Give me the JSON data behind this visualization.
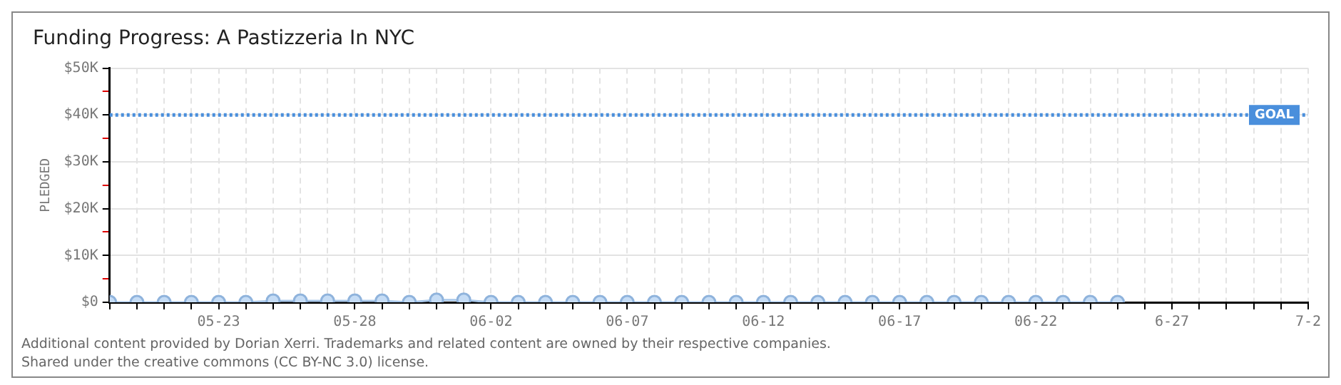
{
  "chart_data": {
    "type": "line",
    "title": "Funding Progress: A Pastizzeria In NYC",
    "ylabel": "PLEDGED",
    "x": [
      "--05-19",
      "--05-20",
      "--05-21",
      "--05-22",
      "--05-23",
      "--05-24",
      "--05-25",
      "--05-26",
      "--05-27",
      "--05-28",
      "--05-29",
      "--05-30",
      "--05-31",
      "--06-01",
      "--06-02",
      "--06-03",
      "--06-04",
      "--06-05",
      "--06-06",
      "--06-07",
      "--06-08",
      "--06-09",
      "--06-10",
      "--06-11",
      "--06-12",
      "--06-13",
      "--06-14",
      "--06-15",
      "--06-16",
      "--06-17",
      "--06-18",
      "--06-19",
      "--06-20",
      "--06-21",
      "--06-22",
      "--06-23",
      "--06-24",
      "--06-25"
    ],
    "series": [
      {
        "color": "#c5dcf5",
        "values": [
          0,
          0,
          0,
          0,
          0,
          0,
          300,
          300,
          300,
          300,
          300,
          0,
          500,
          500,
          0,
          0,
          0,
          0,
          0,
          0,
          0,
          0,
          0,
          0,
          0,
          0,
          0,
          0,
          0,
          0,
          0,
          0,
          0,
          0,
          0,
          0,
          0,
          0
        ]
      }
    ],
    "xlim": [
      "--05-19",
      "--07-02"
    ],
    "xticks": [
      {
        "value": "--05-19",
        "label": null
      },
      {
        "value": "--05-20",
        "label": null
      },
      {
        "value": "--05-21",
        "label": null
      },
      {
        "value": "--05-22",
        "label": null
      },
      {
        "value": "--05-23",
        "label": "05-23"
      },
      {
        "value": "--05-24",
        "label": null
      },
      {
        "value": "--05-25",
        "label": null
      },
      {
        "value": "--05-26",
        "label": null
      },
      {
        "value": "--05-27",
        "label": null
      },
      {
        "value": "--05-28",
        "label": "05-28"
      },
      {
        "value": "--05-29",
        "label": null
      },
      {
        "value": "--05-30",
        "label": null
      },
      {
        "value": "--05-31",
        "label": null
      },
      {
        "value": "--06-01",
        "label": null
      },
      {
        "value": "--06-02",
        "label": "06-02"
      },
      {
        "value": "--06-03",
        "label": null
      },
      {
        "value": "--06-04",
        "label": null
      },
      {
        "value": "--06-05",
        "label": null
      },
      {
        "value": "--06-06",
        "label": null
      },
      {
        "value": "--06-07",
        "label": "06-07"
      },
      {
        "value": "--06-08",
        "label": null
      },
      {
        "value": "--06-09",
        "label": null
      },
      {
        "value": "--06-10",
        "label": null
      },
      {
        "value": "--06-11",
        "label": null
      },
      {
        "value": "--06-12",
        "label": "06-12"
      },
      {
        "value": "--06-13",
        "label": null
      },
      {
        "value": "--06-14",
        "label": null
      },
      {
        "value": "--06-15",
        "label": null
      },
      {
        "value": "--06-16",
        "label": null
      },
      {
        "value": "--06-17",
        "label": "06-17"
      },
      {
        "value": "--06-18",
        "label": null
      },
      {
        "value": "--06-19",
        "label": null
      },
      {
        "value": "--06-20",
        "label": null
      },
      {
        "value": "--06-21",
        "label": null
      },
      {
        "value": "--06-22",
        "label": "06-22"
      },
      {
        "value": "--06-23",
        "label": null
      },
      {
        "value": "--06-24",
        "label": null
      },
      {
        "value": "--06-25",
        "label": null
      },
      {
        "value": "--06-26",
        "label": null
      },
      {
        "value": "--06-27",
        "label": "6-27"
      },
      {
        "value": "--06-28",
        "label": null
      },
      {
        "value": "--06-29",
        "label": null
      },
      {
        "value": "--06-30",
        "label": null
      },
      {
        "value": "--07-01",
        "label": null
      },
      {
        "value": "--07-02",
        "label": "7-2"
      }
    ],
    "ylim": [
      0,
      50000
    ],
    "yticks": [
      {
        "value": 0,
        "label": "$0"
      },
      {
        "value": 5000,
        "label": null
      },
      {
        "value": 10000,
        "label": "$10K"
      },
      {
        "value": 15000,
        "label": null
      },
      {
        "value": 20000,
        "label": "$20K"
      },
      {
        "value": 25000,
        "label": null
      },
      {
        "value": 30000,
        "label": "$30K"
      },
      {
        "value": 35000,
        "label": null
      },
      {
        "value": 40000,
        "label": "$40K"
      },
      {
        "value": 45000,
        "label": null
      },
      {
        "value": 50000,
        "label": "$50K"
      }
    ],
    "ref_lines": [
      {
        "axis": "y",
        "value": 40000,
        "label": "GOAL",
        "color": "#4a8fdc",
        "line_style": "dotted"
      }
    ],
    "grid": true,
    "legend": false,
    "marker": "circle",
    "line_style": "solid",
    "annotations": [
      "Additional content provided by Dorian Xerri. Trademarks and related content are owned by their respective companies.",
      "Shared under the creative commons (CC BY-NC 3.0) license."
    ]
  }
}
